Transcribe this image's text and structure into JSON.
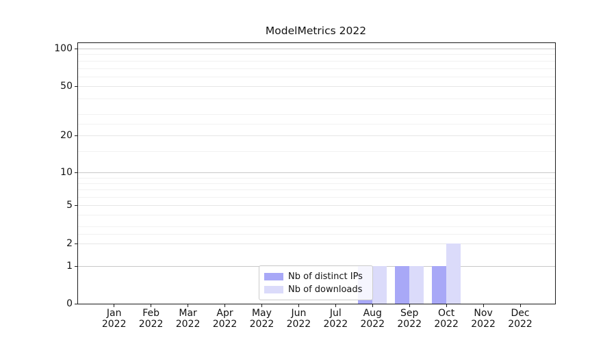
{
  "title": "ModelMetrics 2022",
  "chart_data": {
    "type": "bar",
    "title": "ModelMetrics 2022",
    "categories": [
      "Jan 2022",
      "Feb 2022",
      "Mar 2022",
      "Apr 2022",
      "May 2022",
      "Jun 2022",
      "Jul 2022",
      "Aug 2022",
      "Sep 2022",
      "Oct 2022",
      "Nov 2022",
      "Dec 2022"
    ],
    "x_tick_months": [
      "Jan",
      "Feb",
      "Mar",
      "Apr",
      "May",
      "Jun",
      "Jul",
      "Aug",
      "Sep",
      "Oct",
      "Nov",
      "Dec"
    ],
    "x_tick_year": "2022",
    "series": [
      {
        "name": "Nb of distinct IPs",
        "color": "#a8a8f7",
        "values": [
          0,
          0,
          0,
          0,
          0,
          0,
          0,
          1,
          1,
          1,
          0,
          0
        ]
      },
      {
        "name": "Nb of downloads",
        "color": "#dbdbfa",
        "values": [
          0,
          0,
          0,
          0,
          0,
          0,
          0,
          1,
          1,
          2,
          0,
          0
        ]
      }
    ],
    "y_ticks": [
      0,
      1,
      2,
      5,
      10,
      20,
      50,
      100
    ],
    "yscale": "symlog",
    "ylim": [
      0,
      120
    ],
    "xlabel": "",
    "ylabel": "",
    "grid": true,
    "legend_position": "lower-center"
  },
  "colors": {
    "bar_distinct_ips": "#a8a8f7",
    "bar_downloads": "#dbdbfa",
    "axis": "#1a1a1a",
    "grid_major": "#c8c8c8",
    "grid_minor": "#f1f1f1",
    "legend_border": "#cbcbcb"
  }
}
